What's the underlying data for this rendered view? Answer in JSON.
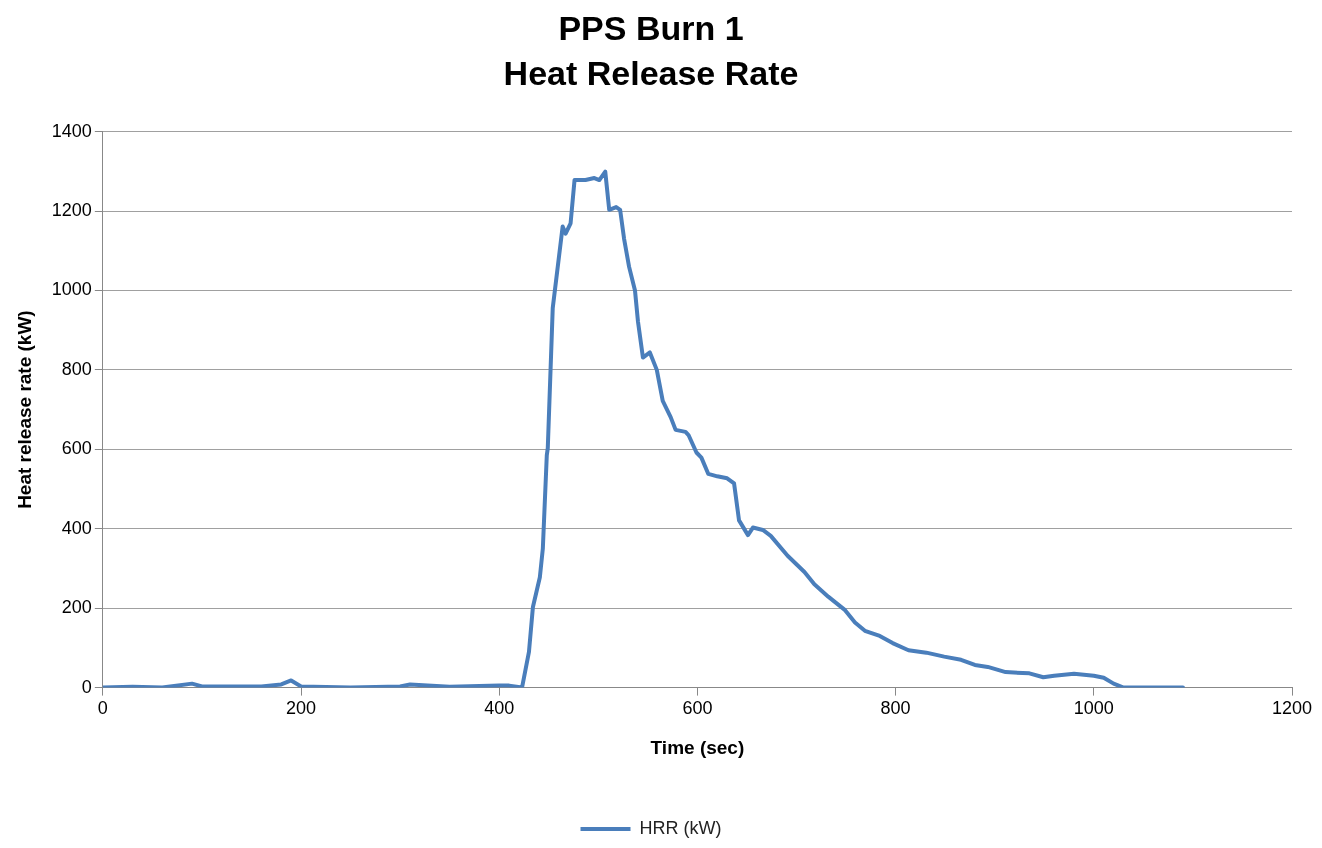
{
  "chart_data": {
    "type": "line",
    "title": "PPS Burn 1",
    "subtitle": "Heat Release Rate",
    "xlabel": "Time (sec)",
    "ylabel": "Heat release rate (kW)",
    "xlim": [
      0,
      1200
    ],
    "xticks": [
      0,
      200,
      400,
      600,
      800,
      1000,
      1200
    ],
    "ylim": [
      0,
      1400
    ],
    "yticks": [
      0,
      200,
      400,
      600,
      800,
      1000,
      1200,
      1400
    ],
    "grid": "y",
    "legend": "bottom",
    "marker": "none",
    "line_style": "solid",
    "series": [
      {
        "name": "HRR (kW)",
        "color": "#4a7ebb",
        "x": [
          0,
          30,
          60,
          90,
          100,
          130,
          160,
          180,
          190,
          200,
          250,
          300,
          310,
          350,
          400,
          410,
          423,
          430,
          434,
          441,
          444,
          448,
          449,
          454,
          464,
          467,
          472,
          476,
          487,
          496,
          501,
          507,
          511,
          518,
          522,
          526,
          531,
          537,
          540,
          545,
          552,
          559,
          565,
          573,
          578,
          588,
          591,
          599,
          604,
          611,
          620,
          630,
          637,
          642,
          651,
          656,
          666,
          674,
          691,
          708,
          718,
          732,
          749,
          759,
          769,
          784,
          797,
          813,
          831,
          849,
          866,
          880,
          893,
          911,
          935,
          949,
          960,
          980,
          1000,
          1010,
          1020,
          1030,
          1060,
          1090
        ],
        "values": [
          0,
          2,
          0,
          10,
          3,
          3,
          3,
          8,
          18,
          3,
          0,
          3,
          8,
          2,
          5,
          5,
          0,
          90,
          203,
          278,
          350,
          585,
          603,
          956,
          1161,
          1143,
          1169,
          1278,
          1278,
          1283,
          1278,
          1299,
          1203,
          1210,
          1203,
          1130,
          1060,
          1000,
          922,
          831,
          844,
          800,
          722,
          681,
          649,
          644,
          636,
          592,
          579,
          538,
          532,
          527,
          514,
          421,
          384,
          403,
          397,
          382,
          332,
          291,
          260,
          229,
          195,
          164,
          143,
          130,
          112,
          94,
          88,
          78,
          70,
          57,
          52,
          39,
          36,
          26,
          30,
          35,
          30,
          25,
          10,
          0,
          0,
          0
        ]
      }
    ]
  }
}
